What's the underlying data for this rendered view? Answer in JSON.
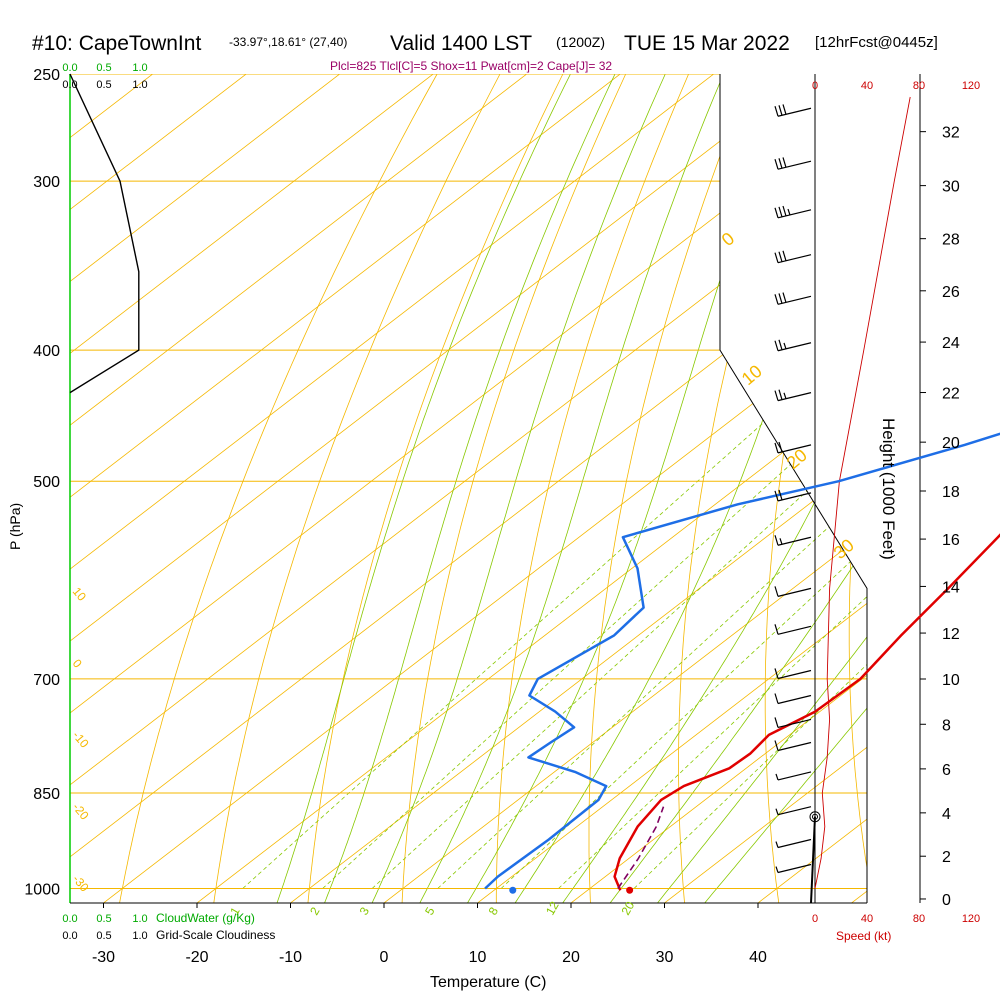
{
  "header": {
    "station": "#10: CapeTownInt",
    "coords": "-33.97°,18.61° (27,40)",
    "valid": "Valid 1400 LST",
    "zulu": "(1200Z)",
    "date": "TUE 15 Mar 2022",
    "forecast": "[12hrFcst@0445z]",
    "indices": "Plcl=825 Tlcl[C]=5 Shox=11 Pwat[cm]=2 Cape[J]= 32"
  },
  "colors": {
    "isotherm": "#f5b800",
    "adiabat": "#f5b800",
    "moist_adiabat": "#88c800",
    "mixing_ratio": "#88c800",
    "temperature": "#e00000",
    "dewpoint": "#1e6ee6",
    "parcel": "#800060",
    "cloud": "#000000",
    "cloudwater": "#00aa00",
    "windspeed": "#cc0000",
    "indices": "#990066"
  },
  "chart_data": {
    "type": "line",
    "title": "Skew-T Log-P sounding",
    "xlabel": "Temperature (C)",
    "ylabel": "P (hPa)",
    "y2label": "Height (1000 Feet)",
    "x_ticks": [
      -30,
      -20,
      -10,
      0,
      10,
      20,
      30,
      40
    ],
    "p_ticks": [
      250,
      300,
      400,
      500,
      700,
      850,
      1000
    ],
    "height_ticks": [
      0,
      2,
      4,
      6,
      8,
      10,
      12,
      14,
      16,
      18,
      20,
      22,
      24,
      26,
      28,
      30,
      32
    ],
    "isotherm_labels": [
      {
        "t": 10,
        "label": "10"
      },
      {
        "t": 0,
        "label": "0"
      },
      {
        "t": -10,
        "label": "-10"
      },
      {
        "t": -20,
        "label": "-20"
      },
      {
        "t": -30,
        "label": "-30"
      }
    ],
    "adiabat_labels": [
      "0",
      "10",
      "20",
      "30"
    ],
    "mixing_ratio_labels": [
      "1",
      "2",
      "3",
      "5",
      "8",
      "12",
      "20"
    ],
    "temperature": [
      {
        "p": 1003,
        "t": 23.5
      },
      {
        "p": 980,
        "t": 21
      },
      {
        "p": 950,
        "t": 19
      },
      {
        "p": 900,
        "t": 16.5
      },
      {
        "p": 860,
        "t": 15.3
      },
      {
        "p": 840,
        "t": 15.8
      },
      {
        "p": 815,
        "t": 18.2
      },
      {
        "p": 795,
        "t": 18.4
      },
      {
        "p": 770,
        "t": 17.8
      },
      {
        "p": 740,
        "t": 19.5
      },
      {
        "p": 700,
        "t": 19.8
      },
      {
        "p": 650,
        "t": 18.1
      },
      {
        "p": 600,
        "t": 16.6
      },
      {
        "p": 550,
        "t": 14.8
      },
      {
        "p": 500,
        "t": 12.9
      },
      {
        "p": 450,
        "t": 11.9
      },
      {
        "p": 400,
        "t": 10.4
      },
      {
        "p": 370,
        "t": 9.2
      },
      {
        "p": 330,
        "t": 7.2
      },
      {
        "p": 300,
        "t": 5.2
      },
      {
        "p": 270,
        "t": 3.0
      },
      {
        "p": 260,
        "t": 1.2
      }
    ],
    "dewpoint": [
      {
        "p": 1000,
        "t": 8.8
      },
      {
        "p": 980,
        "t": 8.5
      },
      {
        "p": 920,
        "t": 8.8
      },
      {
        "p": 860,
        "t": 8.6
      },
      {
        "p": 840,
        "t": 7.5
      },
      {
        "p": 820,
        "t": 2.2
      },
      {
        "p": 800,
        "t": -4.8
      },
      {
        "p": 780,
        "t": -4.5
      },
      {
        "p": 760,
        "t": -4.1
      },
      {
        "p": 740,
        "t": -8.3
      },
      {
        "p": 720,
        "t": -13.3
      },
      {
        "p": 700,
        "t": -14.7
      },
      {
        "p": 650,
        "t": -12.6
      },
      {
        "p": 620,
        "t": -13.3
      },
      {
        "p": 580,
        "t": -19.4
      },
      {
        "p": 550,
        "t": -25.3
      },
      {
        "p": 520,
        "t": -17.6
      },
      {
        "p": 500,
        "t": -10
      },
      {
        "p": 470,
        "t": -1.6
      },
      {
        "p": 440,
        "t": 6.2
      },
      {
        "p": 400,
        "t": 8.0
      },
      {
        "p": 380,
        "t": 6.8
      },
      {
        "p": 330,
        "t": 1.4
      },
      {
        "p": 300,
        "t": -2.0
      },
      {
        "p": 260,
        "t": -3.0
      }
    ],
    "parcel": [
      {
        "p": 1000,
        "t": 23.0
      },
      {
        "p": 950,
        "t": 21.0
      },
      {
        "p": 900,
        "t": 18.5
      },
      {
        "p": 870,
        "t": 16.5
      }
    ],
    "surface_temp": 24.5,
    "surface_dewpoint": 12.0,
    "cloud_fraction": [
      {
        "p": 250,
        "c": 0.0
      },
      {
        "p": 300,
        "c": 0.4
      },
      {
        "p": 350,
        "c": 0.55
      },
      {
        "p": 400,
        "c": 0.55
      },
      {
        "p": 430,
        "c": 0.0
      }
    ],
    "wind_speed_profile": [
      {
        "p": 1000,
        "s": 0
      },
      {
        "p": 950,
        "s": 5
      },
      {
        "p": 900,
        "s": 8
      },
      {
        "p": 850,
        "s": 6
      },
      {
        "p": 800,
        "s": 10
      },
      {
        "p": 750,
        "s": 12
      },
      {
        "p": 700,
        "s": 10
      },
      {
        "p": 600,
        "s": 12
      },
      {
        "p": 500,
        "s": 20
      },
      {
        "p": 400,
        "s": 40
      },
      {
        "p": 300,
        "s": 65
      },
      {
        "p": 260,
        "s": 78
      }
    ],
    "wind_barbs": [
      {
        "p": 265,
        "spd": 30
      },
      {
        "p": 290,
        "spd": 30
      },
      {
        "p": 315,
        "spd": 35
      },
      {
        "p": 340,
        "spd": 30
      },
      {
        "p": 365,
        "spd": 30
      },
      {
        "p": 395,
        "spd": 25
      },
      {
        "p": 430,
        "spd": 25
      },
      {
        "p": 470,
        "spd": 20
      },
      {
        "p": 510,
        "spd": 20
      },
      {
        "p": 550,
        "spd": 15
      },
      {
        "p": 600,
        "spd": 10
      },
      {
        "p": 640,
        "spd": 10
      },
      {
        "p": 690,
        "spd": 10
      },
      {
        "p": 720,
        "spd": 10
      },
      {
        "p": 750,
        "spd": 10
      },
      {
        "p": 780,
        "spd": 10
      },
      {
        "p": 820,
        "spd": 5
      },
      {
        "p": 870,
        "spd": 5
      },
      {
        "p": 920,
        "spd": 5
      },
      {
        "p": 960,
        "spd": 5
      }
    ],
    "speed_axis": {
      "label": "Speed (kt)",
      "ticks": [
        0,
        40,
        80,
        120
      ]
    },
    "cloudwater_axis": {
      "label": "CloudWater (g/Kg)",
      "ticks": [
        "0.0",
        "0.5",
        "1.0"
      ]
    },
    "cloudiness_axis": {
      "label": "Grid-Scale Cloudiness",
      "ticks": [
        "0.0",
        "0.5",
        "1.0"
      ]
    }
  }
}
